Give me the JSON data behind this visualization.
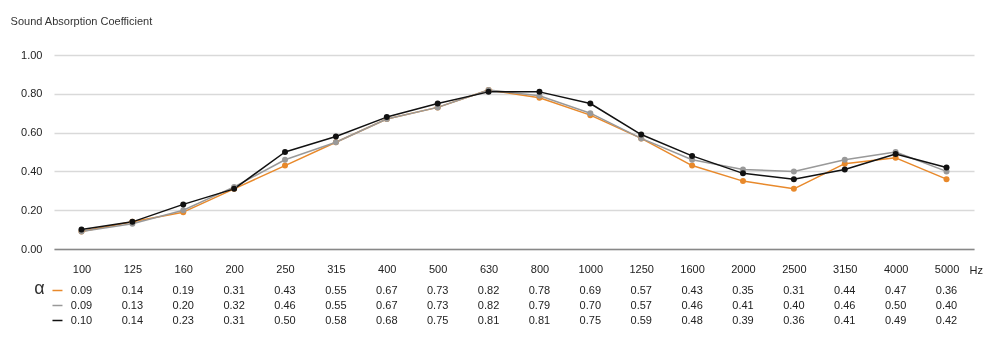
{
  "chart_data": {
    "type": "line",
    "title": "Sound Absorption Coefficient",
    "xlabel": "Hz",
    "legend_title": "α",
    "categories": [
      "100",
      "125",
      "160",
      "200",
      "250",
      "315",
      "400",
      "500",
      "630",
      "800",
      "1000",
      "1250",
      "1600",
      "2000",
      "2500",
      "3150",
      "4000",
      "5000"
    ],
    "series": [
      {
        "color": "#e8892b",
        "values": [
          0.09,
          0.14,
          0.19,
          0.31,
          0.43,
          0.55,
          0.67,
          0.73,
          0.82,
          0.78,
          0.69,
          0.57,
          0.43,
          0.35,
          0.31,
          0.44,
          0.47,
          0.36
        ],
        "value_labels": [
          "0.09",
          "0.14",
          "0.19",
          "0.31",
          "0.43",
          "0.55",
          "0.67",
          "0.73",
          "0.82",
          "0.78",
          "0.69",
          "0.57",
          "0.43",
          "0.35",
          "0.31",
          "0.44",
          "0.47",
          "0.36"
        ]
      },
      {
        "color": "#999999",
        "values": [
          0.09,
          0.13,
          0.2,
          0.32,
          0.46,
          0.55,
          0.67,
          0.73,
          0.82,
          0.79,
          0.7,
          0.57,
          0.46,
          0.41,
          0.4,
          0.46,
          0.5,
          0.4
        ],
        "value_labels": [
          "0.09",
          "0.13",
          "0.20",
          "0.32",
          "0.46",
          "0.55",
          "0.67",
          "0.73",
          "0.82",
          "0.79",
          "0.70",
          "0.57",
          "0.46",
          "0.41",
          "0.40",
          "0.46",
          "0.50",
          "0.40"
        ]
      },
      {
        "color": "#111111",
        "values": [
          0.1,
          0.14,
          0.23,
          0.31,
          0.5,
          0.58,
          0.68,
          0.75,
          0.81,
          0.81,
          0.75,
          0.59,
          0.48,
          0.39,
          0.36,
          0.41,
          0.49,
          0.42
        ],
        "value_labels": [
          "0.10",
          "0.14",
          "0.23",
          "0.31",
          "0.50",
          "0.58",
          "0.68",
          "0.75",
          "0.81",
          "0.81",
          "0.75",
          "0.59",
          "0.48",
          "0.39",
          "0.36",
          "0.41",
          "0.49",
          "0.42"
        ]
      }
    ],
    "ylim": [
      0,
      1
    ],
    "yticks": [
      {
        "value": 0,
        "label": "0.00"
      },
      {
        "value": 0.2,
        "label": "0.20"
      },
      {
        "value": 0.4,
        "label": "0.40"
      },
      {
        "value": 0.6,
        "label": "0.60"
      },
      {
        "value": 0.8,
        "label": "0.80"
      },
      {
        "value": 1,
        "label": "1.00"
      }
    ],
    "grid": "y",
    "marker": "circle",
    "line_style": "solid"
  }
}
